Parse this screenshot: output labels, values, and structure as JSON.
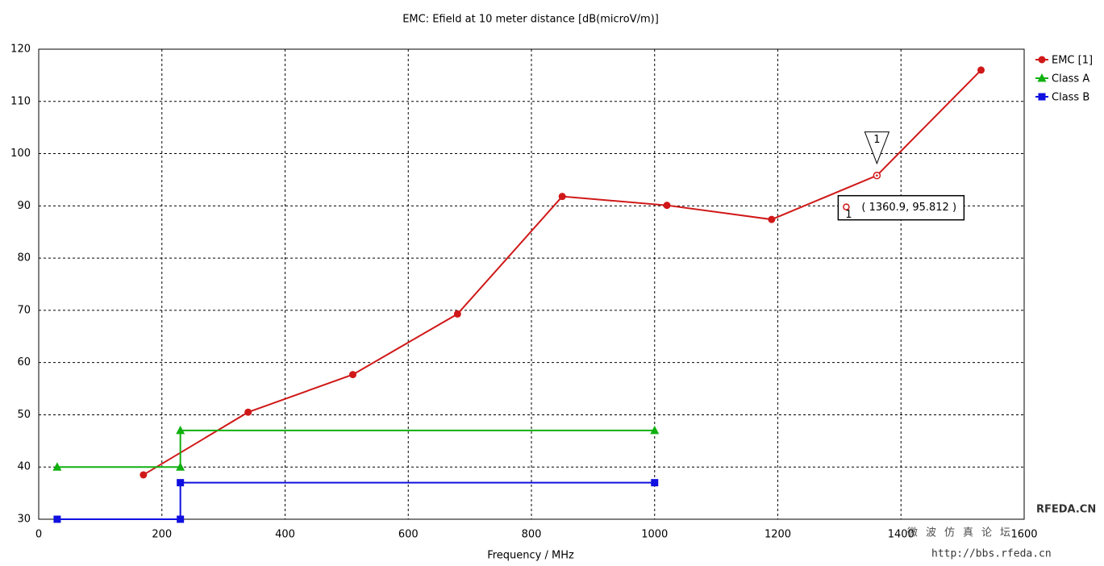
{
  "chart_data": {
    "type": "line",
    "title": "EMC: Efield at 10 meter distance [dB(microV/m)]",
    "x_label": "Frequency / MHz",
    "xlim": [
      0,
      1600
    ],
    "xticks": [
      0,
      200,
      400,
      600,
      800,
      1000,
      1200,
      1400,
      1600
    ],
    "ylim": [
      30,
      120
    ],
    "yticks": [
      30,
      40,
      50,
      60,
      70,
      80,
      90,
      100,
      110,
      120
    ],
    "grid": true,
    "legend": "right",
    "series": [
      {
        "name": "EMC [1]",
        "color": "#d01818",
        "marker": "circle",
        "x": [
          170,
          340,
          510,
          680,
          850,
          1020,
          1190,
          1360.9,
          1530
        ],
        "values": [
          38.5,
          50.5,
          57.7,
          69.3,
          91.8,
          90.1,
          87.4,
          95.812,
          116
        ]
      },
      {
        "name": "Class A",
        "color": "#10b010",
        "marker": "triangle",
        "x": [
          30,
          230,
          230,
          1000
        ],
        "values": [
          40,
          40,
          47,
          47
        ]
      },
      {
        "name": "Class B",
        "color": "#1010e0",
        "marker": "square",
        "x": [
          30,
          230,
          230,
          1000
        ],
        "values": [
          30,
          30,
          37,
          37
        ]
      }
    ],
    "marker": {
      "label": "1",
      "x": 1360.9,
      "y": 95.812,
      "readout": "( 1360.9, 95.812 )"
    },
    "watermark": {
      "site": "RFEDA.CN",
      "name": "微波仿真论坛",
      "url": "http://bbs.rfeda.cn"
    }
  }
}
